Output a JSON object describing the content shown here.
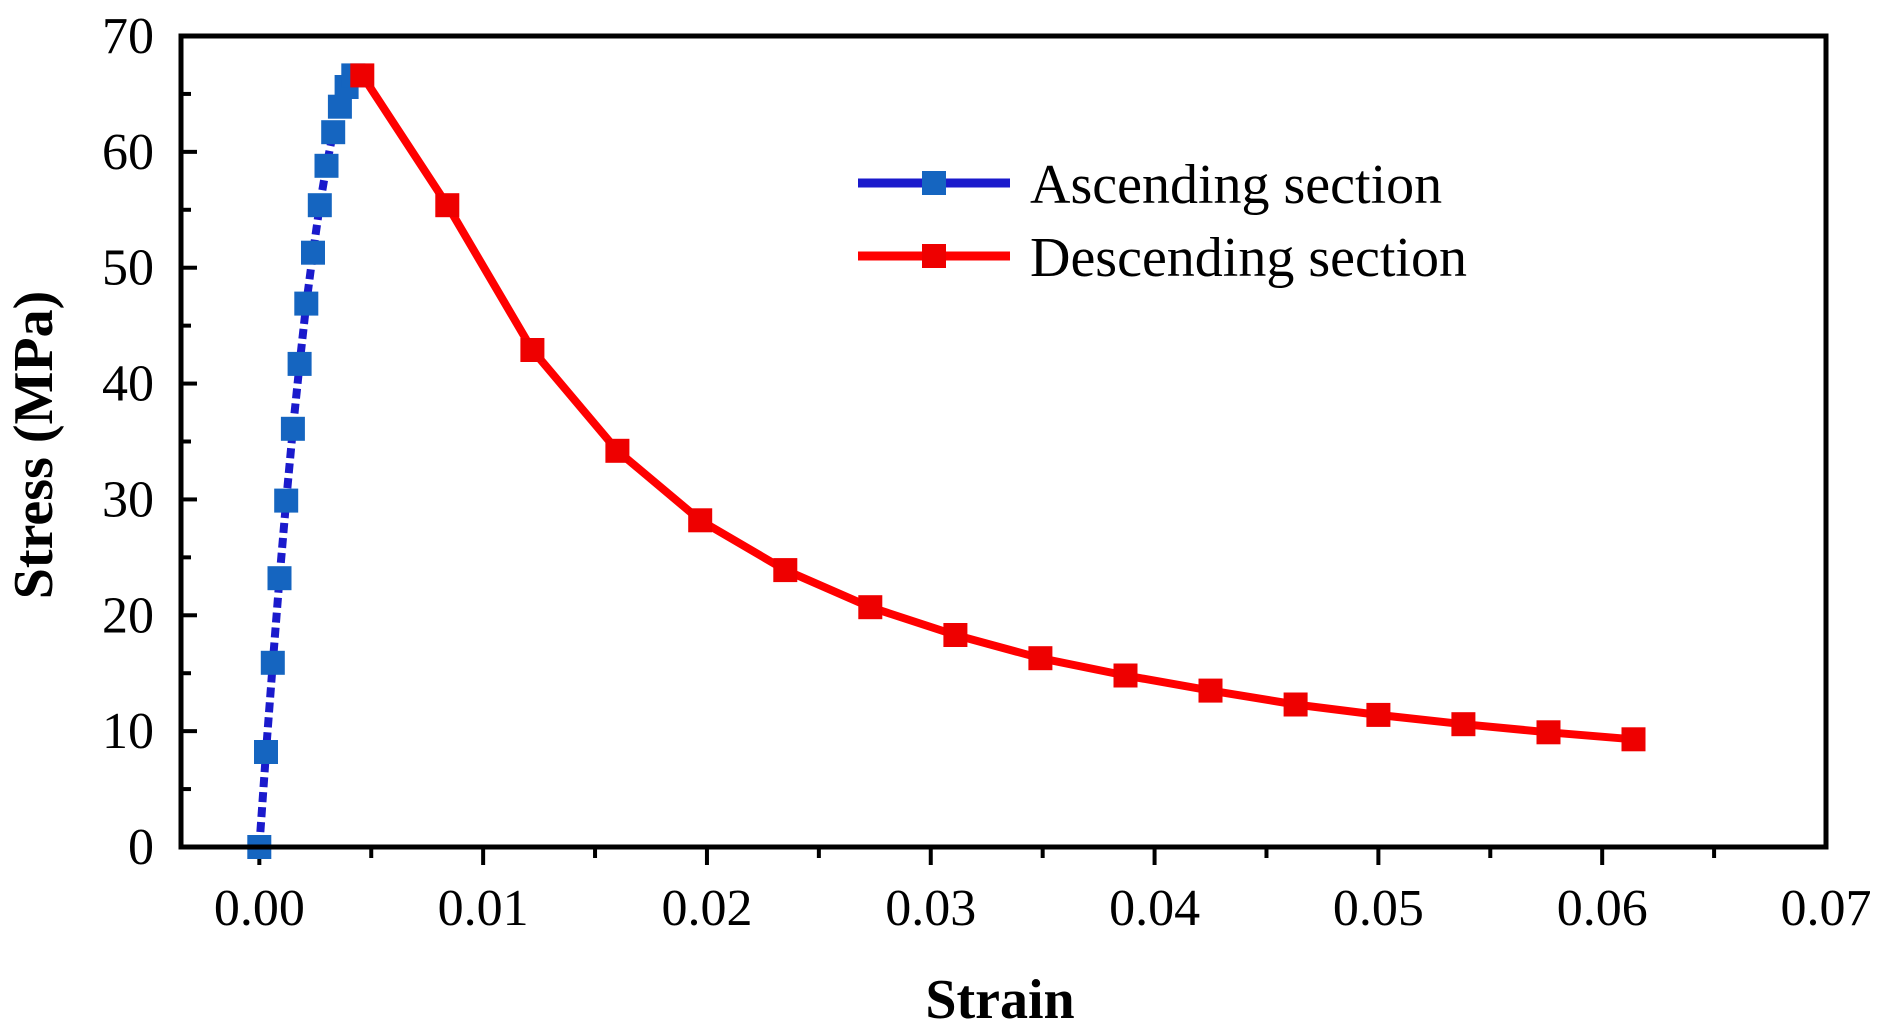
{
  "chart_data": {
    "type": "line",
    "title": "",
    "xlabel": "Strain",
    "ylabel": "Stress (MPa)",
    "xlim": [
      -0.0035,
      0.07
    ],
    "ylim": [
      0,
      70
    ],
    "xticks": [
      0.0,
      0.01,
      0.02,
      0.03,
      0.04,
      0.05,
      0.06,
      0.07
    ],
    "xtick_labels": [
      "0.00",
      "0.01",
      "0.02",
      "0.03",
      "0.04",
      "0.05",
      "0.06",
      "0.07"
    ],
    "yticks": [
      0,
      10,
      20,
      30,
      40,
      50,
      60,
      70
    ],
    "ytick_labels": [
      "0",
      "10",
      "20",
      "30",
      "40",
      "50",
      "60",
      "70"
    ],
    "grid": false,
    "legend_position": "top-right",
    "series": [
      {
        "name": "Ascending section",
        "line_color": "#1a1acc",
        "marker_color": "#1565c0",
        "dashed": true,
        "x": [
          0.0,
          0.0003,
          0.0006,
          0.0009,
          0.0012,
          0.0015,
          0.0018,
          0.0021,
          0.0024,
          0.0027,
          0.003,
          0.0033,
          0.0036,
          0.0039,
          0.0042
        ],
        "y": [
          0.0,
          8.2,
          15.9,
          23.2,
          29.9,
          36.1,
          41.7,
          46.9,
          51.3,
          55.4,
          58.8,
          61.7,
          63.9,
          65.6,
          66.6
        ]
      },
      {
        "name": "Descending section",
        "line_color": "#ff0000",
        "marker_color": "#ee0000",
        "dashed": false,
        "x": [
          0.0046,
          0.0084,
          0.0122,
          0.016,
          0.0197,
          0.0235,
          0.0273,
          0.0311,
          0.0349,
          0.0387,
          0.0425,
          0.0463,
          0.05,
          0.0538,
          0.0576,
          0.0614
        ],
        "y": [
          66.6,
          55.4,
          42.9,
          34.2,
          28.2,
          23.9,
          20.7,
          18.3,
          16.3,
          14.8,
          13.5,
          12.3,
          11.4,
          10.6,
          9.9,
          9.3
        ]
      }
    ]
  }
}
